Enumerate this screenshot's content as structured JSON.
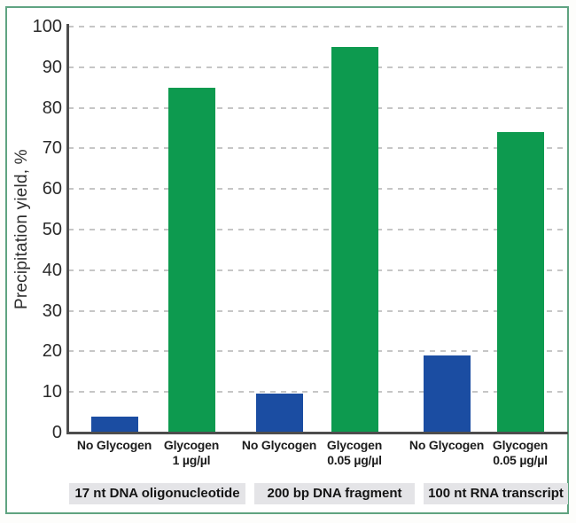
{
  "chart_data": {
    "type": "bar",
    "title": "",
    "xlabel": "",
    "ylabel": "Precipitation yield, %",
    "ylim": [
      0,
      100
    ],
    "yticks": [
      0,
      10,
      20,
      30,
      40,
      50,
      60,
      70,
      80,
      90,
      100
    ],
    "grid": "horizontal-dashed",
    "legend": "none",
    "bars": [
      {
        "label_line1": "No Glycogen",
        "label_line2": "",
        "value": 4,
        "color": "blue"
      },
      {
        "label_line1": "Glycogen",
        "label_line2": "1 µg/µl",
        "value": 85,
        "color": "green"
      },
      {
        "label_line1": "No Glycogen",
        "label_line2": "",
        "value": 9.5,
        "color": "blue"
      },
      {
        "label_line1": "Glycogen",
        "label_line2": "0.05 µg/µl",
        "value": 95,
        "color": "green"
      },
      {
        "label_line1": "No Glycogen",
        "label_line2": "",
        "value": 19,
        "color": "blue"
      },
      {
        "label_line1": "Glycogen",
        "label_line2": "0.05 µg/µl",
        "value": 74,
        "color": "green"
      }
    ],
    "groups": [
      {
        "label": "17 nt DNA oligonucleotide"
      },
      {
        "label": "200 bp DNA fragment"
      },
      {
        "label": "100 nt RNA transcript"
      }
    ],
    "colors": {
      "blue": "#1b4da2",
      "green": "#0d9a4f",
      "frame_border": "#5fa380",
      "grid": "#c6c6c6",
      "axis": "#4d4d4d",
      "group_strip_bg": "#e4e4e7"
    }
  }
}
